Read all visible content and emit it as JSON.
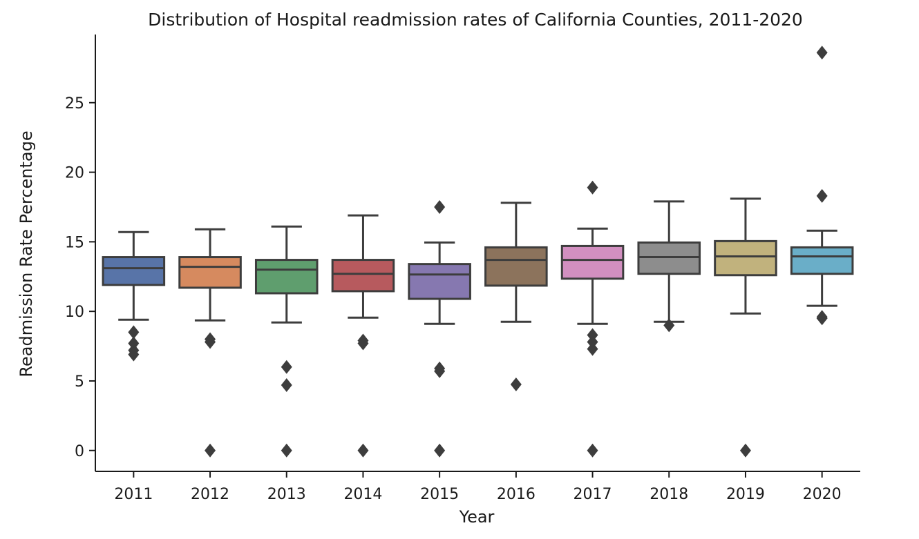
{
  "chart_data": {
    "type": "box",
    "title": "Distribution of Hospital readmission rates of California Counties, 2011-2020",
    "xlabel": "Year",
    "ylabel": "Readmission Rate Percentage",
    "ylim": [
      -1.5,
      29.9
    ],
    "yticks": [
      0,
      5,
      10,
      15,
      20,
      25
    ],
    "grid": false,
    "line_color": "#3d3d3d",
    "categories": [
      "2011",
      "2012",
      "2013",
      "2014",
      "2015",
      "2016",
      "2017",
      "2018",
      "2019",
      "2020"
    ],
    "boxes": [
      {
        "year": "2011",
        "color": "#5874a8",
        "whisker_low": 9.4,
        "q1": 11.9,
        "median": 13.1,
        "q3": 13.9,
        "whisker_high": 15.7,
        "outliers": [
          8.5,
          7.7,
          7.2,
          6.9
        ]
      },
      {
        "year": "2012",
        "color": "#d68a5f",
        "whisker_low": 9.35,
        "q1": 11.7,
        "median": 13.2,
        "q3": 13.9,
        "whisker_high": 15.9,
        "outliers": [
          8.0,
          7.8,
          0.0
        ]
      },
      {
        "year": "2013",
        "color": "#5f9e6e",
        "whisker_low": 9.2,
        "q1": 11.3,
        "median": 13.0,
        "q3": 13.7,
        "whisker_high": 16.1,
        "outliers": [
          6.0,
          4.7,
          0.0
        ]
      },
      {
        "year": "2014",
        "color": "#b75a5e",
        "whisker_low": 9.55,
        "q1": 11.45,
        "median": 12.7,
        "q3": 13.7,
        "whisker_high": 16.9,
        "outliers": [
          7.9,
          7.7,
          0.0
        ]
      },
      {
        "year": "2015",
        "color": "#8678b0",
        "whisker_low": 9.1,
        "q1": 10.9,
        "median": 12.65,
        "q3": 13.4,
        "whisker_high": 14.95,
        "outliers": [
          17.5,
          5.9,
          5.7,
          0.0
        ]
      },
      {
        "year": "2016",
        "color": "#8c735c",
        "whisker_low": 9.25,
        "q1": 11.85,
        "median": 13.7,
        "q3": 14.6,
        "whisker_high": 17.8,
        "outliers": [
          4.75
        ]
      },
      {
        "year": "2017",
        "color": "#d28fc0",
        "whisker_low": 9.1,
        "q1": 12.35,
        "median": 13.7,
        "q3": 14.7,
        "whisker_high": 15.95,
        "outliers": [
          18.9,
          8.3,
          7.8,
          7.3,
          0.0
        ]
      },
      {
        "year": "2018",
        "color": "#8d8d8d",
        "whisker_low": 9.25,
        "q1": 12.7,
        "median": 13.9,
        "q3": 14.95,
        "whisker_high": 17.9,
        "outliers": [
          9.0
        ]
      },
      {
        "year": "2019",
        "color": "#c1b27d",
        "whisker_low": 9.85,
        "q1": 12.6,
        "median": 13.95,
        "q3": 15.05,
        "whisker_high": 18.1,
        "outliers": [
          0.0
        ]
      },
      {
        "year": "2020",
        "color": "#6aaec8",
        "whisker_low": 10.4,
        "q1": 12.7,
        "median": 13.95,
        "q3": 14.6,
        "whisker_high": 15.8,
        "outliers": [
          28.6,
          18.3,
          9.6,
          9.5
        ]
      }
    ]
  }
}
